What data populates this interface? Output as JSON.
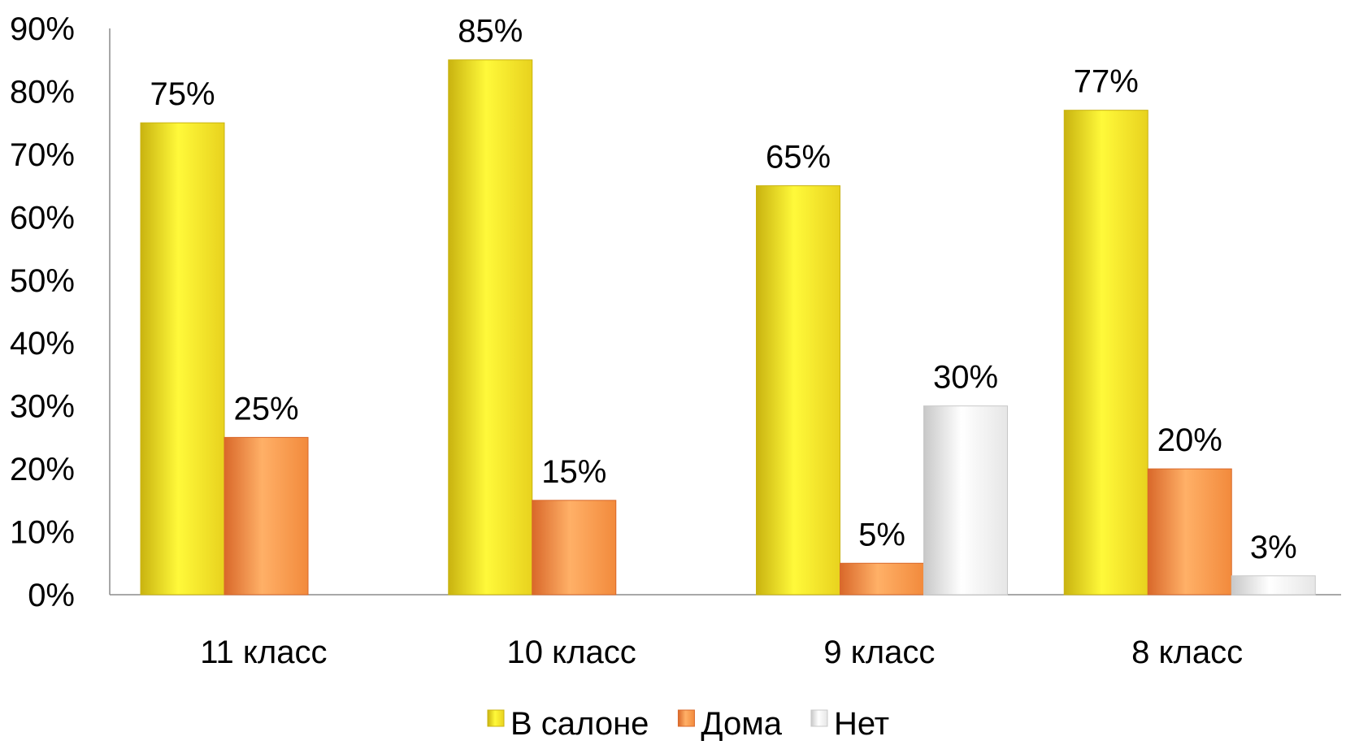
{
  "chart_data": {
    "type": "bar",
    "categories": [
      "11 класс",
      "10 класс",
      "9 класс",
      "8 класс"
    ],
    "series": [
      {
        "name": "В салоне",
        "values": [
          75,
          85,
          65,
          77
        ],
        "labels": [
          "75%",
          "85%",
          "65%",
          "77%"
        ],
        "color": "#e8d21e",
        "color_light": "#fff93a",
        "color_dark": "#c9b310"
      },
      {
        "name": "Дома",
        "values": [
          25,
          15,
          5,
          20
        ],
        "labels": [
          "25%",
          "15%",
          "5%",
          "20%"
        ],
        "color": "#f28a3c",
        "color_light": "#ffb067",
        "color_dark": "#d9682a"
      },
      {
        "name": "Нет",
        "values": [
          null,
          null,
          30,
          3
        ],
        "labels": [
          "",
          "",
          "30%",
          "3%"
        ],
        "color": "#e6e6e6",
        "color_light": "#ffffff",
        "color_dark": "#c8c8c8"
      }
    ],
    "ylim": [
      0,
      90
    ],
    "yticks": [
      0,
      10,
      20,
      30,
      40,
      50,
      60,
      70,
      80,
      90
    ],
    "ytick_labels": [
      "0%",
      "10%",
      "20%",
      "30%",
      "40%",
      "50%",
      "60%",
      "70%",
      "80%",
      "90%"
    ],
    "grid": false,
    "legend_position": "bottom",
    "title": "",
    "xlabel": "",
    "ylabel": ""
  }
}
